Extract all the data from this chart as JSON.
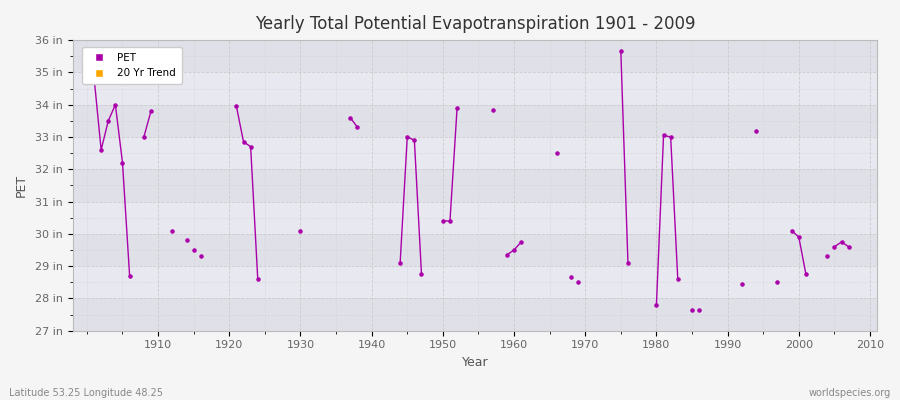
{
  "title": "Yearly Total Potential Evapotranspiration 1901 - 2009",
  "xlabel": "Year",
  "ylabel": "PET",
  "subtitle_left": "Latitude 53.25 Longitude 48.25",
  "subtitle_right": "worldspecies.org",
  "ylim": [
    27,
    36
  ],
  "xlim": [
    1898,
    2011
  ],
  "yticks_labels": [
    "27 in",
    "28 in",
    "29 in",
    "30 in",
    "31 in",
    "32 in",
    "33 in",
    "34 in",
    "35 in",
    "36 in"
  ],
  "yticks_values": [
    27,
    28,
    29,
    30,
    31,
    32,
    33,
    34,
    35,
    36
  ],
  "pet_color": "#aa00aa",
  "trend_color": "#FFA500",
  "bg_color": "#f5f5f5",
  "plot_bg_color": "#e8e8e8",
  "band_colors": [
    "#e0e0e8",
    "#e8e8f0"
  ],
  "grid_color": "#cccccc",
  "pet_data": [
    [
      1901,
      34.85
    ],
    [
      1902,
      32.6
    ],
    [
      1903,
      33.5
    ],
    [
      1904,
      34.0
    ],
    [
      1905,
      32.2
    ],
    [
      1906,
      28.7
    ],
    [
      1908,
      33.0
    ],
    [
      1909,
      33.8
    ],
    [
      1912,
      30.1
    ],
    [
      1914,
      29.8
    ],
    [
      1915,
      29.5
    ],
    [
      1916,
      29.3
    ],
    [
      1921,
      33.95
    ],
    [
      1922,
      32.85
    ],
    [
      1923,
      32.7
    ],
    [
      1924,
      28.6
    ],
    [
      1930,
      30.1
    ],
    [
      1937,
      33.6
    ],
    [
      1938,
      33.3
    ],
    [
      1944,
      29.1
    ],
    [
      1945,
      33.0
    ],
    [
      1946,
      32.9
    ],
    [
      1947,
      28.75
    ],
    [
      1950,
      30.4
    ],
    [
      1951,
      30.4
    ],
    [
      1952,
      33.9
    ],
    [
      1957,
      33.85
    ],
    [
      1959,
      29.35
    ],
    [
      1960,
      29.5
    ],
    [
      1961,
      29.75
    ],
    [
      1966,
      32.5
    ],
    [
      1968,
      28.65
    ],
    [
      1969,
      28.5
    ],
    [
      1975,
      35.65
    ],
    [
      1976,
      29.1
    ],
    [
      1980,
      27.8
    ],
    [
      1981,
      33.05
    ],
    [
      1982,
      33.0
    ],
    [
      1983,
      28.6
    ],
    [
      1985,
      27.65
    ],
    [
      1986,
      27.65
    ],
    [
      1992,
      28.45
    ],
    [
      1994,
      33.2
    ],
    [
      1997,
      28.5
    ],
    [
      1999,
      30.1
    ],
    [
      2000,
      29.9
    ],
    [
      2001,
      28.75
    ],
    [
      2004,
      29.3
    ],
    [
      2005,
      29.6
    ],
    [
      2006,
      29.75
    ],
    [
      2007,
      29.6
    ]
  ],
  "connected_segments": [
    [
      1901,
      1902,
      1903,
      1904,
      1905,
      1906
    ],
    [
      1908,
      1909
    ],
    [
      1921,
      1922,
      1923,
      1924
    ],
    [
      1937,
      1938
    ],
    [
      1944,
      1945,
      1946,
      1947
    ],
    [
      1950,
      1951,
      1952
    ],
    [
      1959,
      1960,
      1961
    ],
    [
      1975,
      1976
    ],
    [
      1980,
      1981,
      1982,
      1983
    ],
    [
      1999,
      2000,
      2001
    ],
    [
      2005,
      2006,
      2007
    ]
  ]
}
